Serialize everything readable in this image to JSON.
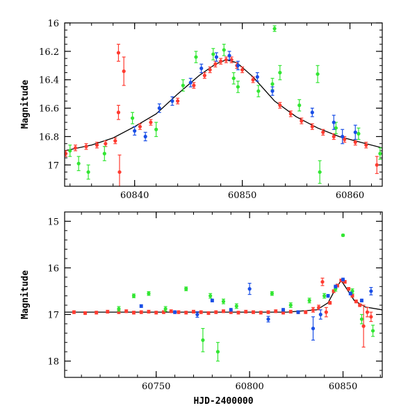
{
  "colors": {
    "red": "#ff3b30",
    "green": "#33e633",
    "blue": "#1a4fe6",
    "model": "#000000",
    "axis": "#000000"
  },
  "chart_data": [
    {
      "type": "scatter",
      "panel": "top",
      "title": "",
      "xlabel": "",
      "ylabel": "Magnitude",
      "xlim": [
        60833.5,
        60863
      ],
      "ylim": [
        17.15,
        16.0
      ],
      "y_inverted": true,
      "grid": false,
      "x_ticks": [
        60840,
        60850,
        60860
      ],
      "x_tick_labels": [
        "60840",
        "60850",
        "60860"
      ],
      "y_ticks": [
        16,
        16.2,
        16.4,
        16.6,
        16.8,
        17
      ],
      "y_tick_labels": [
        "16",
        "16.2",
        "16.4",
        "16.6",
        "16.8",
        "17"
      ],
      "model_curve": {
        "x": [
          60833.5,
          60836,
          60838,
          60840,
          60842,
          60844,
          60846,
          60847.5,
          60848.5,
          60849.5,
          60851,
          60853,
          60855,
          60857,
          60859,
          60861,
          60863
        ],
        "y": [
          16.9,
          16.86,
          16.81,
          16.73,
          16.64,
          16.5,
          16.37,
          16.29,
          16.26,
          16.28,
          16.38,
          16.55,
          16.66,
          16.74,
          16.8,
          16.84,
          16.88
        ]
      },
      "series": [
        {
          "color": "#ff3b30",
          "x": [
            60833.6,
            60834.5,
            60835.5,
            60836.5,
            60837.3,
            60838.2,
            60838.5,
            60838.5,
            60838.6,
            60839.0,
            60840.5,
            60841.5,
            60844.0,
            60845.5,
            60846.5,
            60847.0,
            60847.5,
            60848.0,
            60848.5,
            60849.0,
            60849.5,
            60850.0,
            60851.0,
            60853.5,
            60854.5,
            60855.5,
            60856.5,
            60857.5,
            60858.5,
            60859.5,
            60860.5,
            60861.5,
            60862.5
          ],
          "y": [
            16.92,
            16.88,
            16.87,
            16.86,
            16.85,
            16.83,
            16.21,
            16.63,
            17.05,
            16.34,
            16.73,
            16.7,
            16.55,
            16.44,
            16.37,
            16.33,
            16.29,
            16.27,
            16.26,
            16.26,
            16.3,
            16.33,
            16.4,
            16.58,
            16.64,
            16.69,
            16.73,
            16.77,
            16.8,
            16.82,
            16.84,
            16.86,
            17.0
          ],
          "yerr": [
            0.02,
            0.02,
            0.02,
            0.02,
            0.02,
            0.02,
            0.06,
            0.05,
            0.12,
            0.1,
            0.02,
            0.02,
            0.02,
            0.02,
            0.02,
            0.02,
            0.02,
            0.02,
            0.02,
            0.02,
            0.02,
            0.02,
            0.02,
            0.02,
            0.02,
            0.02,
            0.02,
            0.02,
            0.02,
            0.02,
            0.02,
            0.02,
            0.06
          ]
        },
        {
          "color": "#33e633",
          "x": [
            60834.0,
            60834.8,
            60835.7,
            60837.2,
            60839.8,
            60842.0,
            60844.5,
            60845.7,
            60847.3,
            60848.3,
            60849.2,
            60849.6,
            60851.5,
            60852.8,
            60853.0,
            60853.5,
            60855.3,
            60857.0,
            60857.2,
            60858.7,
            60860.8,
            60862.8
          ],
          "y": [
            16.9,
            16.99,
            17.05,
            16.92,
            16.67,
            16.75,
            16.44,
            16.24,
            16.22,
            16.19,
            16.39,
            16.45,
            16.48,
            16.43,
            16.04,
            16.35,
            16.58,
            16.36,
            17.05,
            16.74,
            16.78,
            16.92
          ],
          "yerr": [
            0.04,
            0.05,
            0.05,
            0.05,
            0.04,
            0.05,
            0.04,
            0.04,
            0.04,
            0.04,
            0.04,
            0.04,
            0.04,
            0.04,
            0.02,
            0.05,
            0.04,
            0.06,
            0.08,
            0.04,
            0.04,
            0.04
          ]
        },
        {
          "color": "#1a4fe6",
          "x": [
            60840.0,
            60841.0,
            60842.3,
            60843.5,
            60845.2,
            60846.2,
            60847.6,
            60848.8,
            60849.6,
            60851.4,
            60852.8,
            60856.5,
            60858.5,
            60859.3,
            60860.5
          ],
          "y": [
            16.76,
            16.8,
            16.6,
            16.55,
            16.42,
            16.32,
            16.24,
            16.23,
            16.3,
            16.38,
            16.48,
            16.63,
            16.7,
            16.8,
            16.77
          ],
          "yerr": [
            0.03,
            0.03,
            0.03,
            0.03,
            0.03,
            0.03,
            0.03,
            0.03,
            0.03,
            0.03,
            0.03,
            0.03,
            0.05,
            0.05,
            0.05
          ]
        }
      ]
    },
    {
      "type": "scatter",
      "panel": "bottom",
      "title": "",
      "xlabel": "HJD-2400000",
      "ylabel": "Magnitude",
      "xlim": [
        60701,
        60871
      ],
      "ylim": [
        18.35,
        14.8
      ],
      "y_inverted": true,
      "grid": false,
      "x_ticks": [
        60750,
        60800,
        60850
      ],
      "x_tick_labels": [
        "60750",
        "60800",
        "60850"
      ],
      "y_ticks": [
        15,
        16,
        17,
        18
      ],
      "y_tick_labels": [
        "15",
        "16",
        "17",
        "18"
      ],
      "model_curve": {
        "x": [
          60701,
          60720,
          60760,
          60800,
          60820,
          60836,
          60842,
          60846,
          60849,
          60852,
          60856,
          60862,
          60871
        ],
        "y": [
          16.95,
          16.95,
          16.95,
          16.95,
          16.95,
          16.9,
          16.75,
          16.45,
          16.27,
          16.45,
          16.7,
          16.84,
          16.9
        ]
      },
      "series": [
        {
          "color": "#ff3b30",
          "x": [
            60706,
            60712,
            60718,
            60724,
            60730,
            60734,
            60738,
            60742,
            60746,
            60750,
            60754,
            60758,
            60762,
            60766,
            60770,
            60774,
            60778,
            60782,
            60786,
            60790,
            60794,
            60798,
            60802,
            60806,
            60810,
            60814,
            60818,
            60822,
            60826,
            60830,
            60834,
            60837,
            60839,
            60841,
            60843,
            60845,
            60847,
            60849,
            60851,
            60853,
            60855,
            60857,
            60859,
            60861,
            60863,
            60865
          ],
          "y": [
            16.95,
            16.97,
            16.96,
            16.94,
            16.95,
            16.93,
            16.96,
            16.95,
            16.94,
            16.96,
            16.95,
            16.93,
            16.95,
            16.96,
            16.94,
            16.95,
            16.97,
            16.95,
            16.93,
            16.95,
            16.96,
            16.94,
            16.95,
            16.96,
            16.95,
            16.93,
            16.96,
            16.94,
            16.95,
            16.95,
            16.9,
            16.85,
            16.3,
            16.95,
            16.75,
            16.5,
            16.38,
            16.27,
            16.3,
            16.45,
            16.6,
            16.72,
            16.8,
            17.25,
            16.95,
            17.05
          ],
          "yerr": [
            0.03,
            0.03,
            0.03,
            0.03,
            0.03,
            0.03,
            0.03,
            0.03,
            0.03,
            0.03,
            0.03,
            0.03,
            0.03,
            0.03,
            0.03,
            0.03,
            0.03,
            0.03,
            0.03,
            0.03,
            0.03,
            0.03,
            0.03,
            0.03,
            0.03,
            0.03,
            0.03,
            0.03,
            0.03,
            0.03,
            0.05,
            0.05,
            0.08,
            0.1,
            0.03,
            0.03,
            0.03,
            0.03,
            0.03,
            0.03,
            0.03,
            0.03,
            0.03,
            0.45,
            0.1,
            0.1
          ]
        },
        {
          "color": "#33e633",
          "x": [
            60730,
            60738,
            60746,
            60755,
            60766,
            60775,
            60779,
            60783,
            60786,
            60793,
            60812,
            60822,
            60832,
            60840,
            60846,
            60850,
            60855,
            60860,
            60866
          ],
          "y": [
            16.88,
            16.6,
            16.55,
            16.88,
            16.45,
            17.55,
            16.6,
            17.8,
            16.72,
            16.82,
            16.55,
            16.8,
            16.7,
            16.6,
            16.45,
            15.3,
            16.5,
            17.1,
            17.35
          ],
          "yerr": [
            0.05,
            0.04,
            0.04,
            0.05,
            0.04,
            0.25,
            0.05,
            0.2,
            0.05,
            0.05,
            0.04,
            0.05,
            0.05,
            0.05,
            0.05,
            0.02,
            0.05,
            0.1,
            0.12
          ]
        },
        {
          "color": "#1a4fe6",
          "x": [
            60742,
            60760,
            60772,
            60780,
            60790,
            60800,
            60810,
            60818,
            60826,
            60834,
            60838,
            60842,
            60846,
            60850,
            60854,
            60860,
            60865
          ],
          "y": [
            16.82,
            16.95,
            17.0,
            16.7,
            16.9,
            16.45,
            17.1,
            16.9,
            16.95,
            17.3,
            17.0,
            16.6,
            16.4,
            16.25,
            16.55,
            16.7,
            16.5
          ],
          "yerr": [
            0.03,
            0.03,
            0.06,
            0.03,
            0.03,
            0.12,
            0.06,
            0.03,
            0.03,
            0.25,
            0.1,
            0.03,
            0.03,
            0.03,
            0.03,
            0.03,
            0.08
          ]
        }
      ]
    }
  ]
}
